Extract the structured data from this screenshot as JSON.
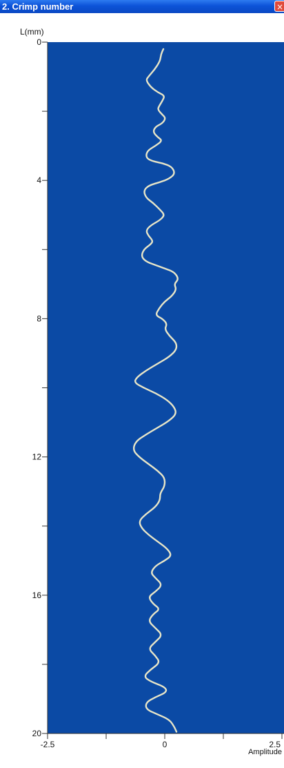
{
  "window": {
    "title": "2. Crimp number",
    "close_glyph": "×"
  },
  "colors": {
    "plot_background": "#0b4aa5",
    "curve": "#e8e6c8",
    "titlebar": "#0b55d6",
    "window_background": "#ffffff"
  },
  "chart_data": {
    "type": "line",
    "orientation": "vertical",
    "ylabel": "L(mm)",
    "xlabel": "Amplitude",
    "xlim": [
      -2.5,
      2.5
    ],
    "ylim": [
      0,
      20
    ],
    "y_inverted": true,
    "grid": false,
    "x_ticks": [
      -2.5,
      -1.25,
      0,
      1.25,
      2.5
    ],
    "x_tick_labels": [
      "-2.5",
      "",
      "0",
      "",
      "2.5"
    ],
    "y_ticks": [
      0,
      2,
      4,
      6,
      8,
      10,
      12,
      14,
      16,
      18,
      20
    ],
    "y_tick_labels": [
      "0",
      "",
      "4",
      "",
      "8",
      "",
      "12",
      "",
      "16",
      "",
      "20"
    ],
    "series": [
      {
        "points": [
          [
            -0.03,
            0.2
          ],
          [
            -0.08,
            0.35
          ],
          [
            -0.1,
            0.55
          ],
          [
            -0.22,
            0.8
          ],
          [
            -0.35,
            1.0
          ],
          [
            -0.4,
            1.1
          ],
          [
            -0.3,
            1.3
          ],
          [
            -0.15,
            1.45
          ],
          [
            0.0,
            1.55
          ],
          [
            -0.05,
            1.7
          ],
          [
            -0.12,
            1.85
          ],
          [
            -0.15,
            1.95
          ],
          [
            -0.05,
            2.1
          ],
          [
            0.02,
            2.2
          ],
          [
            -0.05,
            2.35
          ],
          [
            -0.2,
            2.45
          ],
          [
            -0.25,
            2.6
          ],
          [
            -0.15,
            2.75
          ],
          [
            -0.05,
            2.85
          ],
          [
            -0.2,
            3.0
          ],
          [
            -0.38,
            3.15
          ],
          [
            -0.4,
            3.35
          ],
          [
            -0.25,
            3.45
          ],
          [
            -0.05,
            3.5
          ],
          [
            0.15,
            3.6
          ],
          [
            0.22,
            3.8
          ],
          [
            0.1,
            3.95
          ],
          [
            -0.1,
            4.05
          ],
          [
            -0.35,
            4.15
          ],
          [
            -0.45,
            4.3
          ],
          [
            -0.4,
            4.5
          ],
          [
            -0.25,
            4.65
          ],
          [
            -0.1,
            4.85
          ],
          [
            0.0,
            5.0
          ],
          [
            -0.1,
            5.15
          ],
          [
            -0.3,
            5.3
          ],
          [
            -0.4,
            5.45
          ],
          [
            -0.35,
            5.6
          ],
          [
            -0.25,
            5.75
          ],
          [
            -0.3,
            5.85
          ],
          [
            -0.45,
            6.0
          ],
          [
            -0.5,
            6.2
          ],
          [
            -0.4,
            6.35
          ],
          [
            -0.2,
            6.45
          ],
          [
            0.0,
            6.55
          ],
          [
            0.2,
            6.65
          ],
          [
            0.3,
            6.85
          ],
          [
            0.2,
            7.0
          ],
          [
            0.25,
            7.15
          ],
          [
            0.15,
            7.35
          ],
          [
            0.0,
            7.5
          ],
          [
            -0.12,
            7.7
          ],
          [
            -0.2,
            7.9
          ],
          [
            -0.05,
            8.0
          ],
          [
            0.05,
            8.15
          ],
          [
            0.0,
            8.3
          ],
          [
            0.1,
            8.5
          ],
          [
            0.25,
            8.7
          ],
          [
            0.25,
            8.9
          ],
          [
            0.1,
            9.1
          ],
          [
            -0.15,
            9.3
          ],
          [
            -0.4,
            9.5
          ],
          [
            -0.6,
            9.7
          ],
          [
            -0.65,
            9.85
          ],
          [
            -0.45,
            10.0
          ],
          [
            -0.2,
            10.15
          ],
          [
            0.05,
            10.35
          ],
          [
            0.2,
            10.55
          ],
          [
            0.25,
            10.75
          ],
          [
            0.1,
            10.95
          ],
          [
            -0.15,
            11.15
          ],
          [
            -0.4,
            11.35
          ],
          [
            -0.62,
            11.55
          ],
          [
            -0.68,
            11.8
          ],
          [
            -0.55,
            12.0
          ],
          [
            -0.35,
            12.2
          ],
          [
            -0.15,
            12.4
          ],
          [
            0.0,
            12.6
          ],
          [
            0.0,
            12.85
          ],
          [
            -0.1,
            13.05
          ],
          [
            -0.1,
            13.25
          ],
          [
            -0.2,
            13.45
          ],
          [
            -0.4,
            13.65
          ],
          [
            -0.55,
            13.85
          ],
          [
            -0.5,
            14.05
          ],
          [
            -0.35,
            14.25
          ],
          [
            -0.15,
            14.45
          ],
          [
            0.05,
            14.65
          ],
          [
            0.15,
            14.85
          ],
          [
            0.0,
            15.0
          ],
          [
            -0.2,
            15.15
          ],
          [
            -0.3,
            15.35
          ],
          [
            -0.2,
            15.5
          ],
          [
            -0.05,
            15.7
          ],
          [
            -0.2,
            15.9
          ],
          [
            -0.35,
            16.05
          ],
          [
            -0.25,
            16.25
          ],
          [
            -0.1,
            16.4
          ],
          [
            -0.25,
            16.55
          ],
          [
            -0.35,
            16.75
          ],
          [
            -0.2,
            16.95
          ],
          [
            -0.05,
            17.15
          ],
          [
            -0.2,
            17.35
          ],
          [
            -0.35,
            17.55
          ],
          [
            -0.2,
            17.75
          ],
          [
            -0.1,
            17.95
          ],
          [
            -0.3,
            18.15
          ],
          [
            -0.45,
            18.35
          ],
          [
            -0.3,
            18.5
          ],
          [
            0.0,
            18.65
          ],
          [
            0.05,
            18.8
          ],
          [
            -0.2,
            18.95
          ],
          [
            -0.4,
            19.1
          ],
          [
            -0.4,
            19.3
          ],
          [
            -0.15,
            19.45
          ],
          [
            0.1,
            19.6
          ],
          [
            0.2,
            19.8
          ],
          [
            0.25,
            19.95
          ]
        ]
      }
    ]
  }
}
